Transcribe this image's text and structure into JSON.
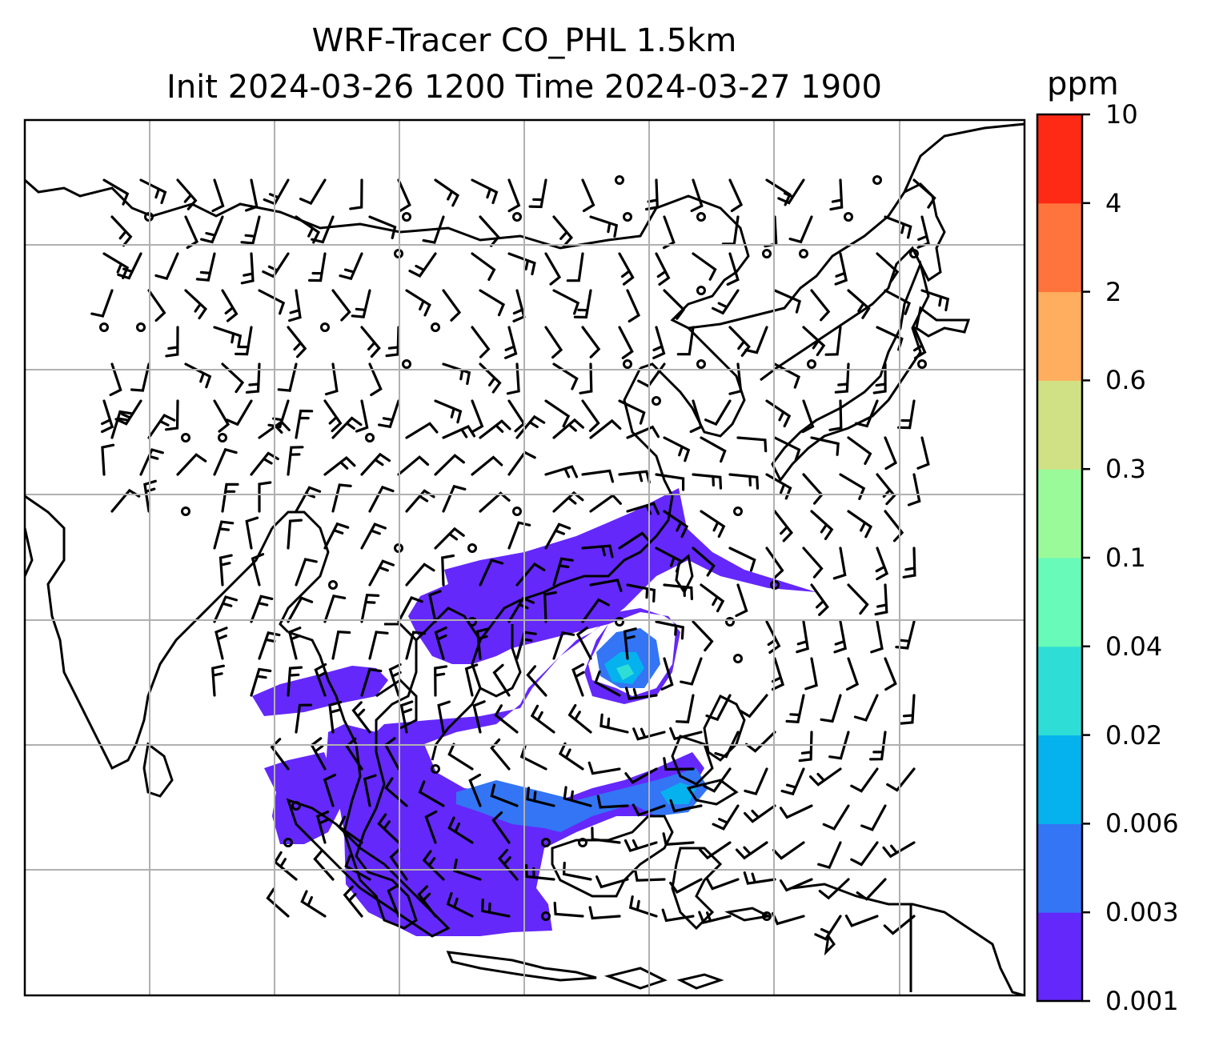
{
  "title_line1": "WRF-Tracer CO_PHL 1.5km",
  "title_line2": "Init 2024-03-26 1200 Time 2024-03-27 1900",
  "colorbar": {
    "unit": "ppm",
    "levels": [
      "0.001",
      "0.003",
      "0.006",
      "0.02",
      "0.04",
      "0.1",
      "0.3",
      "0.6",
      "2",
      "4",
      "10"
    ],
    "colors": [
      "#6428FA",
      "#3375F4",
      "#05B2EE",
      "#2EDED6",
      "#68FAB9",
      "#9AFA9A",
      "#D0E185",
      "#FEAE5E",
      "#FF733C",
      "#FF2A16"
    ]
  },
  "map": {
    "type": "tracer concentration map with wind barbs",
    "gridlines": true,
    "plume_levels": [
      "0.001",
      "0.003",
      "0.006",
      "0.02"
    ]
  }
}
